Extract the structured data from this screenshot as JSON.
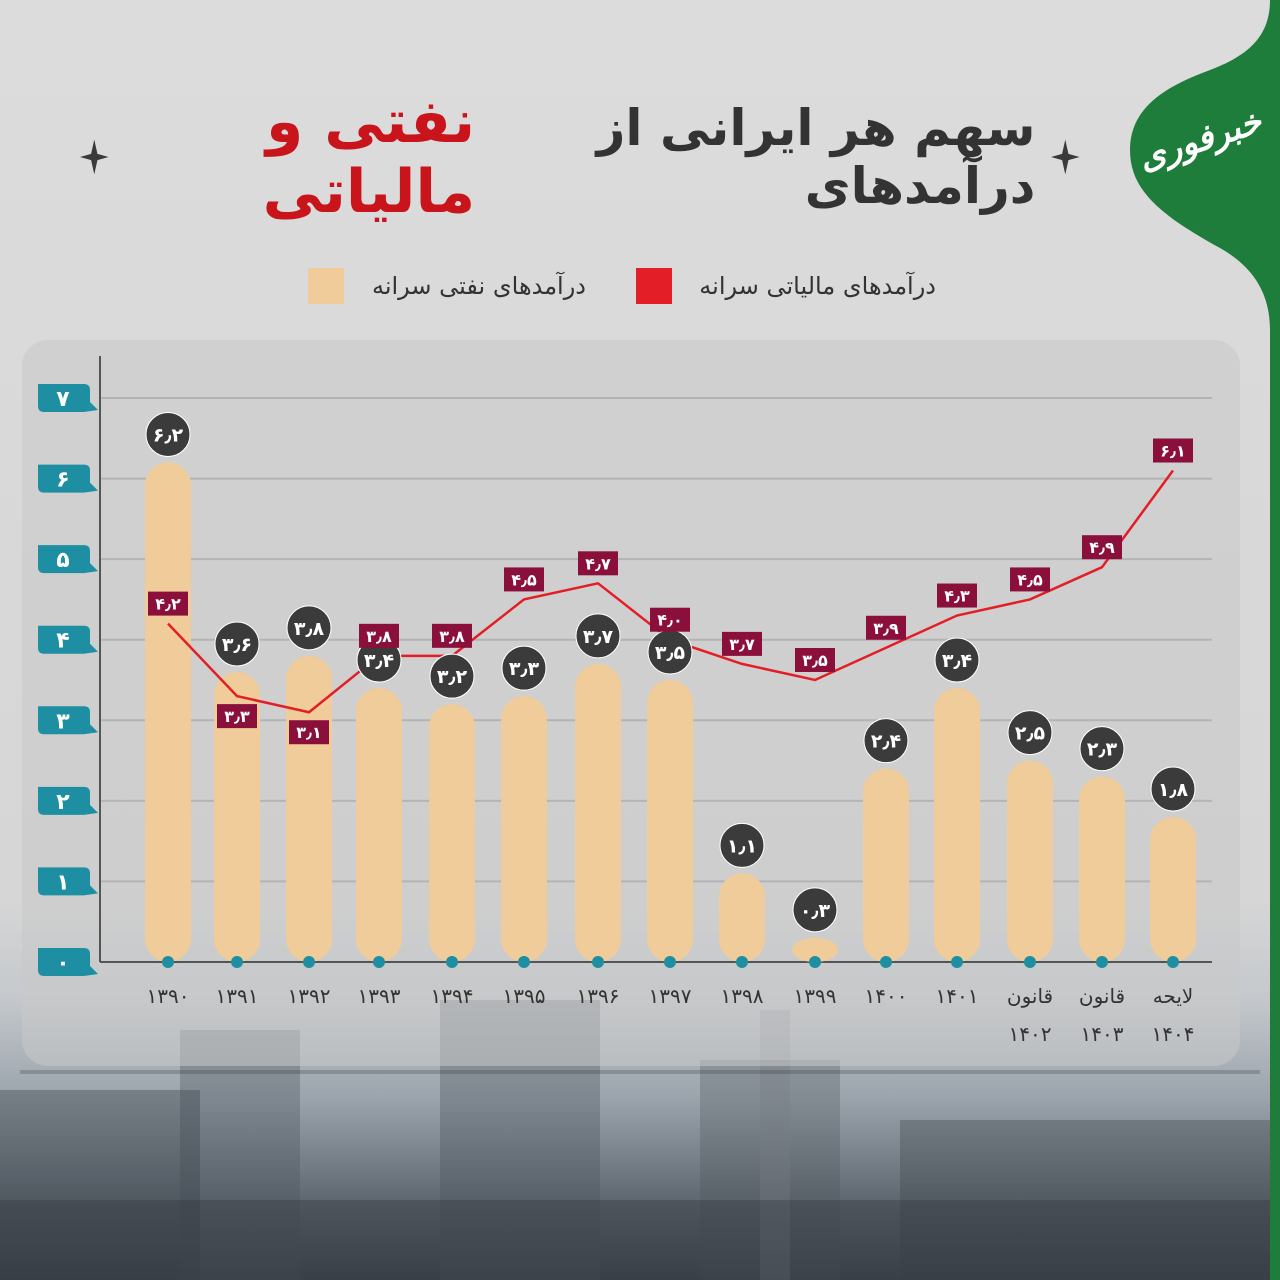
{
  "title": {
    "part1": "سهم هر ایرانی از درآمدهای",
    "part2": "نفتی و مالیاتی"
  },
  "logo_text": "خبرفوری",
  "colors": {
    "bar": "#f0cc9b",
    "line": "#e31e26",
    "line_label_bg": "#8a0f3a",
    "bubble": "#3b3b3b",
    "axis_badge": "#1e8fa3",
    "brand_green": "#1e7d3b",
    "title_accent": "#c8141a"
  },
  "legend": [
    {
      "label": "درآمدهای مالیاتی سرانه",
      "color": "#e31e26"
    },
    {
      "label": "درآمدهای نفتی سرانه",
      "color": "#f0cc9b"
    }
  ],
  "chart_data": {
    "type": "bar",
    "ylim": [
      0,
      7
    ],
    "yticks": [
      "۰",
      "۱",
      "۲",
      "۳",
      "۴",
      "۵",
      "۶",
      "۷"
    ],
    "categories": [
      "۱۳۹۰",
      "۱۳۹۱",
      "۱۳۹۲",
      "۱۳۹۳",
      "۱۳۹۴",
      "۱۳۹۵",
      "۱۳۹۶",
      "۱۳۹۷",
      "۱۳۹۸",
      "۱۳۹۹",
      "۱۴۰۰",
      "۱۴۰۱",
      "قانون ۱۴۰۲",
      "قانون ۱۴۰۳",
      "لایحه ۱۴۰۴"
    ],
    "series": [
      {
        "name": "درآمدهای نفتی سرانه",
        "kind": "bar",
        "values": [
          6.2,
          3.6,
          3.8,
          3.4,
          3.2,
          3.3,
          3.7,
          3.5,
          1.1,
          0.3,
          2.4,
          3.4,
          2.5,
          2.3,
          1.8
        ],
        "labels": [
          "۶٫۲",
          "۳٫۶",
          "۳٫۸",
          "۳٫۴",
          "۳٫۲",
          "۳٫۳",
          "۳٫۷",
          "۳٫۵",
          "۱٫۱",
          "۰٫۳",
          "۲٫۴",
          "۳٫۴",
          "۲٫۵",
          "۲٫۳",
          "۱٫۸"
        ]
      },
      {
        "name": "درآمدهای مالیاتی سرانه",
        "kind": "line",
        "values": [
          4.2,
          3.3,
          3.1,
          3.8,
          3.8,
          4.5,
          4.7,
          4.0,
          3.7,
          3.5,
          3.9,
          4.3,
          4.5,
          4.9,
          6.1
        ],
        "labels": [
          "۴٫۲",
          "۳٫۳",
          "۳٫۱",
          "۳٫۸",
          "۳٫۸",
          "۴٫۵",
          "۴٫۷",
          "۴٫۰",
          "۳٫۷",
          "۳٫۵",
          "۳٫۹",
          "۴٫۳",
          "۴٫۵",
          "۴٫۹",
          "۶٫۱"
        ]
      }
    ]
  }
}
